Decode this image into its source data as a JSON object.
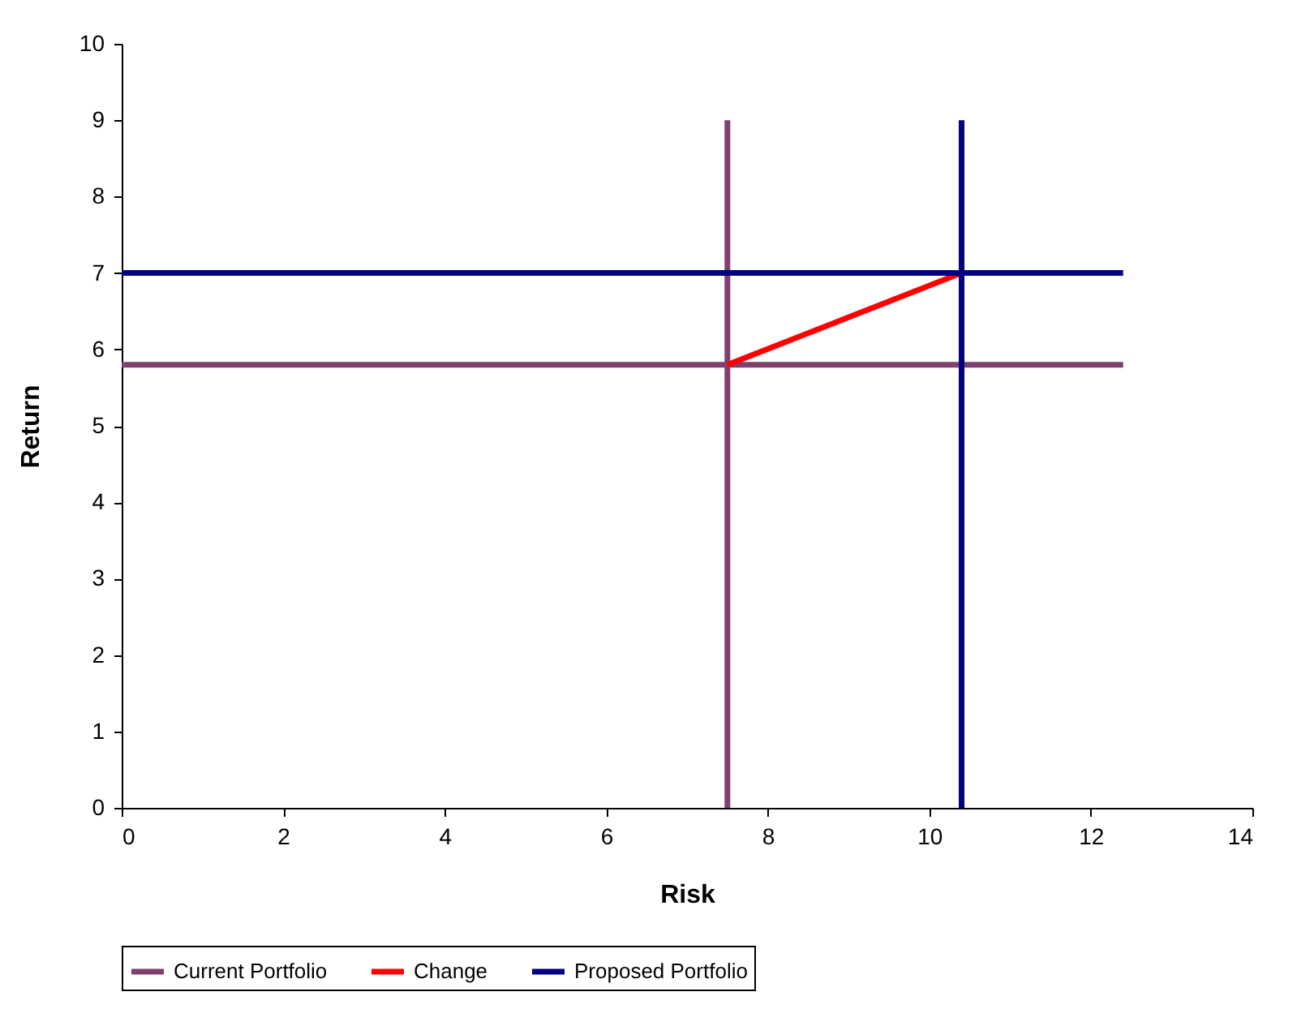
{
  "chart_data": {
    "type": "line",
    "xlabel": "Risk",
    "ylabel": "Return",
    "xlim": [
      0,
      14
    ],
    "xticks": [
      0,
      2,
      4,
      6,
      8,
      10,
      12,
      14
    ],
    "ylim": [
      0,
      10
    ],
    "yticks": [
      0,
      1,
      2,
      3,
      4,
      5,
      6,
      7,
      8,
      9,
      10
    ],
    "grid": false,
    "legend": "bottom",
    "marker": "none",
    "line_style": "solid",
    "series": [
      {
        "name": "Current Portfolio",
        "color": "#7f3f6f",
        "x": [
          0,
          12.4,
          null,
          7.5,
          7.5
        ],
        "values": [
          5.8,
          5.8,
          null,
          0,
          9
        ]
      },
      {
        "name": "Change",
        "color": "#ff0000",
        "x": [
          7.5,
          10.4
        ],
        "values": [
          5.8,
          7
        ]
      },
      {
        "name": "Proposed Portfolio",
        "color": "#000080",
        "x": [
          0,
          12.4,
          null,
          10.4,
          10.4
        ],
        "values": [
          7,
          7,
          null,
          0,
          9
        ]
      }
    ]
  }
}
